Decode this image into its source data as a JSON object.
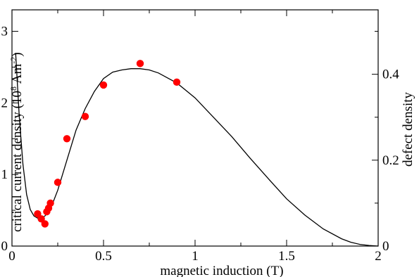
{
  "chart_data": {
    "type": "scatter",
    "xlabel": "magnetic induction (T)",
    "ylabel_left": {
      "prefix": "critical current density (10",
      "exp1": "8",
      "mid": " Am",
      "exp2": "-2",
      "suffix": ")"
    },
    "ylabel_right": "defect density",
    "xlim": [
      0,
      2
    ],
    "ylim_left": [
      0,
      3.3
    ],
    "ylim_right": [
      0,
      0.55
    ],
    "xticks": [
      0,
      0.5,
      1,
      1.5,
      2
    ],
    "xtick_labels": [
      "0",
      "0.5",
      "1",
      "1.5",
      "2"
    ],
    "yticks_left": [
      0,
      1,
      2,
      3
    ],
    "ytick_labels_left": [
      "0",
      "1",
      "2",
      "3"
    ],
    "yticks_right": [
      0,
      0.2,
      0.4
    ],
    "ytick_labels_right": [
      "0",
      "0.2",
      "0.4"
    ],
    "grid": false,
    "series": [
      {
        "kind": "points",
        "axis": "left",
        "color": "#ff0000",
        "x": [
          0.14,
          0.16,
          0.18,
          0.19,
          0.2,
          0.21,
          0.25,
          0.3,
          0.4,
          0.5,
          0.7,
          0.9
        ],
        "y": [
          0.45,
          0.38,
          0.31,
          0.48,
          0.53,
          0.6,
          0.89,
          1.5,
          1.81,
          2.25,
          2.55,
          2.29
        ]
      },
      {
        "kind": "line",
        "axis": "right",
        "color": "#000000",
        "x": [
          0.02,
          0.04,
          0.06,
          0.08,
          0.1,
          0.12,
          0.14,
          0.15,
          0.16,
          0.17,
          0.18,
          0.2,
          0.22,
          0.25,
          0.3,
          0.35,
          0.4,
          0.45,
          0.5,
          0.55,
          0.6,
          0.65,
          0.7,
          0.75,
          0.8,
          0.9,
          1.0,
          1.1,
          1.2,
          1.3,
          1.4,
          1.5,
          1.6,
          1.7,
          1.8,
          1.85,
          1.9,
          1.95,
          2.0
        ],
        "y": [
          0.45,
          0.3,
          0.19,
          0.12,
          0.085,
          0.07,
          0.065,
          0.064,
          0.065,
          0.067,
          0.07,
          0.08,
          0.097,
          0.13,
          0.2,
          0.27,
          0.32,
          0.36,
          0.39,
          0.405,
          0.41,
          0.413,
          0.413,
          0.41,
          0.403,
          0.38,
          0.345,
          0.3,
          0.255,
          0.205,
          0.157,
          0.11,
          0.072,
          0.04,
          0.017,
          0.009,
          0.004,
          0.0015,
          0.0
        ]
      }
    ]
  }
}
